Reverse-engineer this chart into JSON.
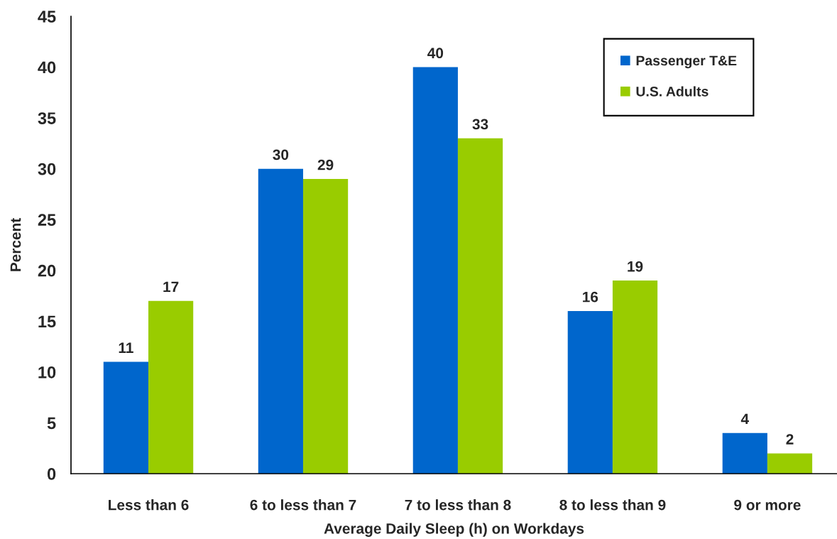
{
  "chart_data": {
    "type": "bar",
    "xlabel": "Average Daily Sleep (h) on Workdays",
    "ylabel": "Percent",
    "categories": [
      "Less than 6",
      "6 to less than 7",
      "7 to less than 8",
      "8 to less than 9",
      "9 or more"
    ],
    "series": [
      {
        "name": "Passenger T&E",
        "color": "#0066cc",
        "values": [
          11,
          30,
          40,
          16,
          4
        ]
      },
      {
        "name": "U.S. Adults",
        "color": "#99cc00",
        "values": [
          17,
          29,
          33,
          19,
          2
        ]
      }
    ],
    "ylim": [
      0,
      45
    ],
    "yticks": [
      0,
      5,
      10,
      15,
      20,
      25,
      30,
      35,
      40,
      45
    ],
    "data_labels": true,
    "legend": "top right",
    "grid": false
  }
}
